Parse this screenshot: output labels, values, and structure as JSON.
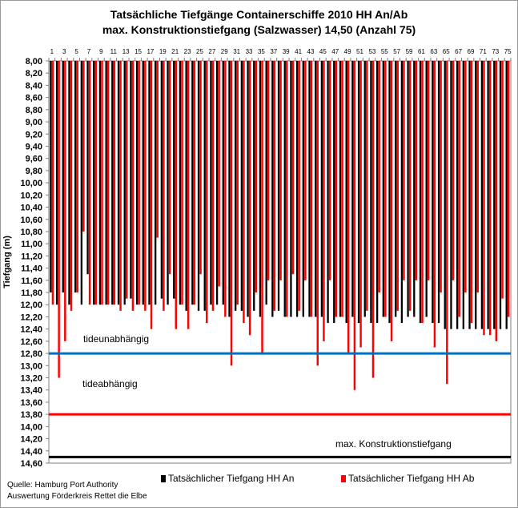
{
  "chart_data": {
    "type": "bar",
    "title": "Tatsächliche Tiefgänge Containerschiffe 2010 HH An/Ab",
    "subtitle": "max. Konstruktionstiefgang (Salzwasser) 14,50 (Anzahl 75)",
    "ylabel": "Tiefgang (m)",
    "xlabel": "",
    "ylim": [
      8.0,
      14.6
    ],
    "y_inverted": true,
    "y_ticks": [
      "8,00",
      "8,20",
      "8,40",
      "8,60",
      "8,80",
      "9,00",
      "9,20",
      "9,40",
      "9,60",
      "9,80",
      "10,00",
      "10,20",
      "10,40",
      "10,60",
      "10,80",
      "11,00",
      "11,20",
      "11,40",
      "11,60",
      "11,80",
      "12,00",
      "12,20",
      "12,40",
      "12,60",
      "12,80",
      "13,00",
      "13,20",
      "13,40",
      "13,60",
      "13,80",
      "14,00",
      "14,20",
      "14,40",
      "14,60"
    ],
    "x_tick_labels": [
      "1",
      "3",
      "5",
      "7",
      "9",
      "11",
      "13",
      "15",
      "17",
      "19",
      "21",
      "23",
      "25",
      "27",
      "29",
      "31",
      "33",
      "35",
      "37",
      "39",
      "41",
      "43",
      "45",
      "47",
      "49",
      "51",
      "53",
      "55",
      "57",
      "59",
      "61",
      "63",
      "65",
      "67",
      "69",
      "71",
      "73",
      "75"
    ],
    "grid": false,
    "legend_position": "bottom",
    "series": [
      {
        "name": "Tatsächlicher Tiefgang HH An",
        "color": "#000000",
        "values": [
          11.8,
          12.0,
          11.8,
          12.0,
          11.8,
          12.0,
          11.5,
          12.0,
          12.0,
          12.0,
          12.0,
          12.0,
          12.0,
          11.9,
          12.0,
          12.0,
          12.0,
          12.0,
          11.9,
          12.0,
          11.9,
          12.0,
          12.1,
          12.0,
          12.1,
          12.1,
          12.0,
          12.0,
          12.0,
          12.2,
          12.1,
          12.1,
          12.2,
          12.1,
          12.2,
          12.0,
          12.2,
          12.1,
          12.2,
          12.2,
          12.2,
          12.2,
          12.2,
          12.2,
          12.2,
          12.3,
          12.3,
          12.2,
          12.3,
          12.2,
          12.3,
          12.2,
          12.3,
          12.3,
          12.2,
          12.3,
          12.2,
          12.3,
          12.2,
          12.2,
          12.3,
          12.2,
          12.3,
          12.3,
          12.4,
          12.4,
          12.4,
          12.4,
          12.4,
          12.4,
          12.4,
          12.4,
          12.4,
          12.4,
          12.4
        ]
      },
      {
        "name": "Tatsächlicher Tiefgang HH Ab",
        "color": "#ff0000",
        "values": [
          12.0,
          13.2,
          12.6,
          12.1,
          11.8,
          10.8,
          12.0,
          12.0,
          12.0,
          12.0,
          12.0,
          12.1,
          11.9,
          12.1,
          12.0,
          12.1,
          12.4,
          10.9,
          12.1,
          11.5,
          12.4,
          12.0,
          12.4,
          12.0,
          11.5,
          12.3,
          12.1,
          11.7,
          12.2,
          13.0,
          12.0,
          12.3,
          12.5,
          11.8,
          12.8,
          11.6,
          12.1,
          11.6,
          12.2,
          11.5,
          12.1,
          11.6,
          12.2,
          13.0,
          12.6,
          11.6,
          12.2,
          12.2,
          12.8,
          13.4,
          12.7,
          12.1,
          13.2,
          11.8,
          12.2,
          12.6,
          12.1,
          11.6,
          12.1,
          11.6,
          12.3,
          11.6,
          12.7,
          11.8,
          13.3,
          11.6,
          12.2,
          11.8,
          12.3,
          11.8,
          12.5,
          12.5,
          12.6,
          11.9,
          12.2
        ]
      }
    ],
    "reference_lines": [
      {
        "value": 12.8,
        "color": "#0070c0",
        "label": "tideunabhängig"
      },
      {
        "value": 13.8,
        "color": "#ff0000",
        "label": "tideabhängig"
      },
      {
        "value": 14.5,
        "color": "#000000",
        "label": "max. Konstruktionstiefgang"
      }
    ]
  },
  "source": {
    "line1": "Quelle: Hamburg Port Authority",
    "line2": "Auswertung Förderkreis Rettet die Elbe"
  }
}
